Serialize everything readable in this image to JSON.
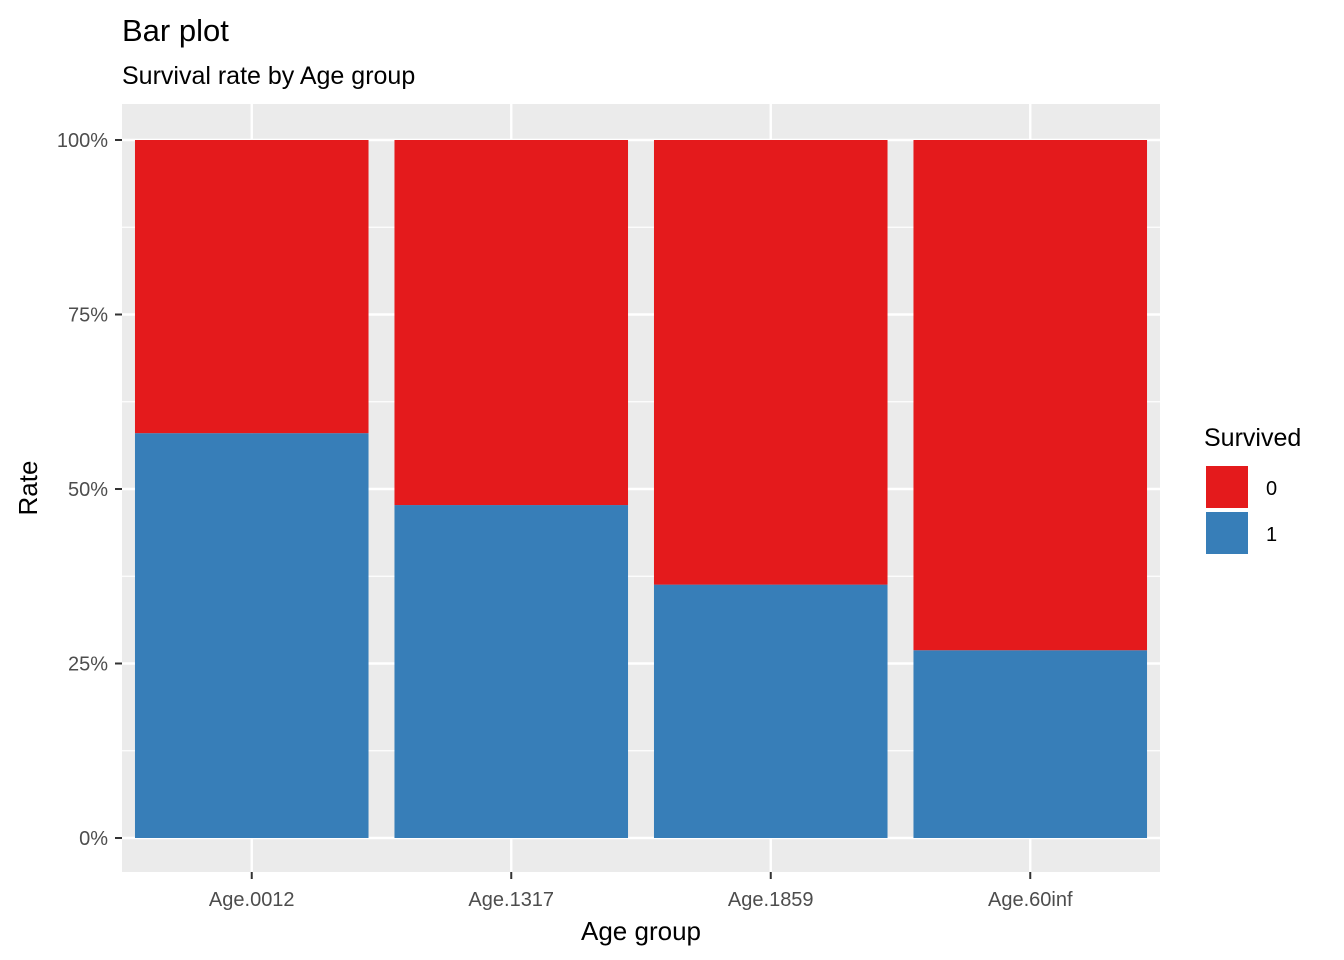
{
  "chart_data": {
    "type": "bar",
    "stacked": true,
    "title": "Bar plot",
    "subtitle": "Survival rate by Age group",
    "xlabel": "Age group",
    "ylabel": "Rate",
    "categories": [
      "Age.0012",
      "Age.1317",
      "Age.1859",
      "Age.60inf"
    ],
    "series": [
      {
        "name": "0",
        "color": "#E41A1C",
        "values": [
          0.42,
          0.523,
          0.637,
          0.731
        ]
      },
      {
        "name": "1",
        "color": "#377EB8",
        "values": [
          0.58,
          0.477,
          0.363,
          0.269
        ]
      }
    ],
    "ylim": [
      0,
      1
    ],
    "yticks": [
      0,
      0.25,
      0.5,
      0.75,
      1
    ],
    "ytick_labels": [
      "0%",
      "25%",
      "50%",
      "75%",
      "100%"
    ],
    "grid": true,
    "panel_background": "#EBEBEB",
    "legend": {
      "title": "Survived",
      "position": "right",
      "entries": [
        "0",
        "1"
      ]
    }
  }
}
